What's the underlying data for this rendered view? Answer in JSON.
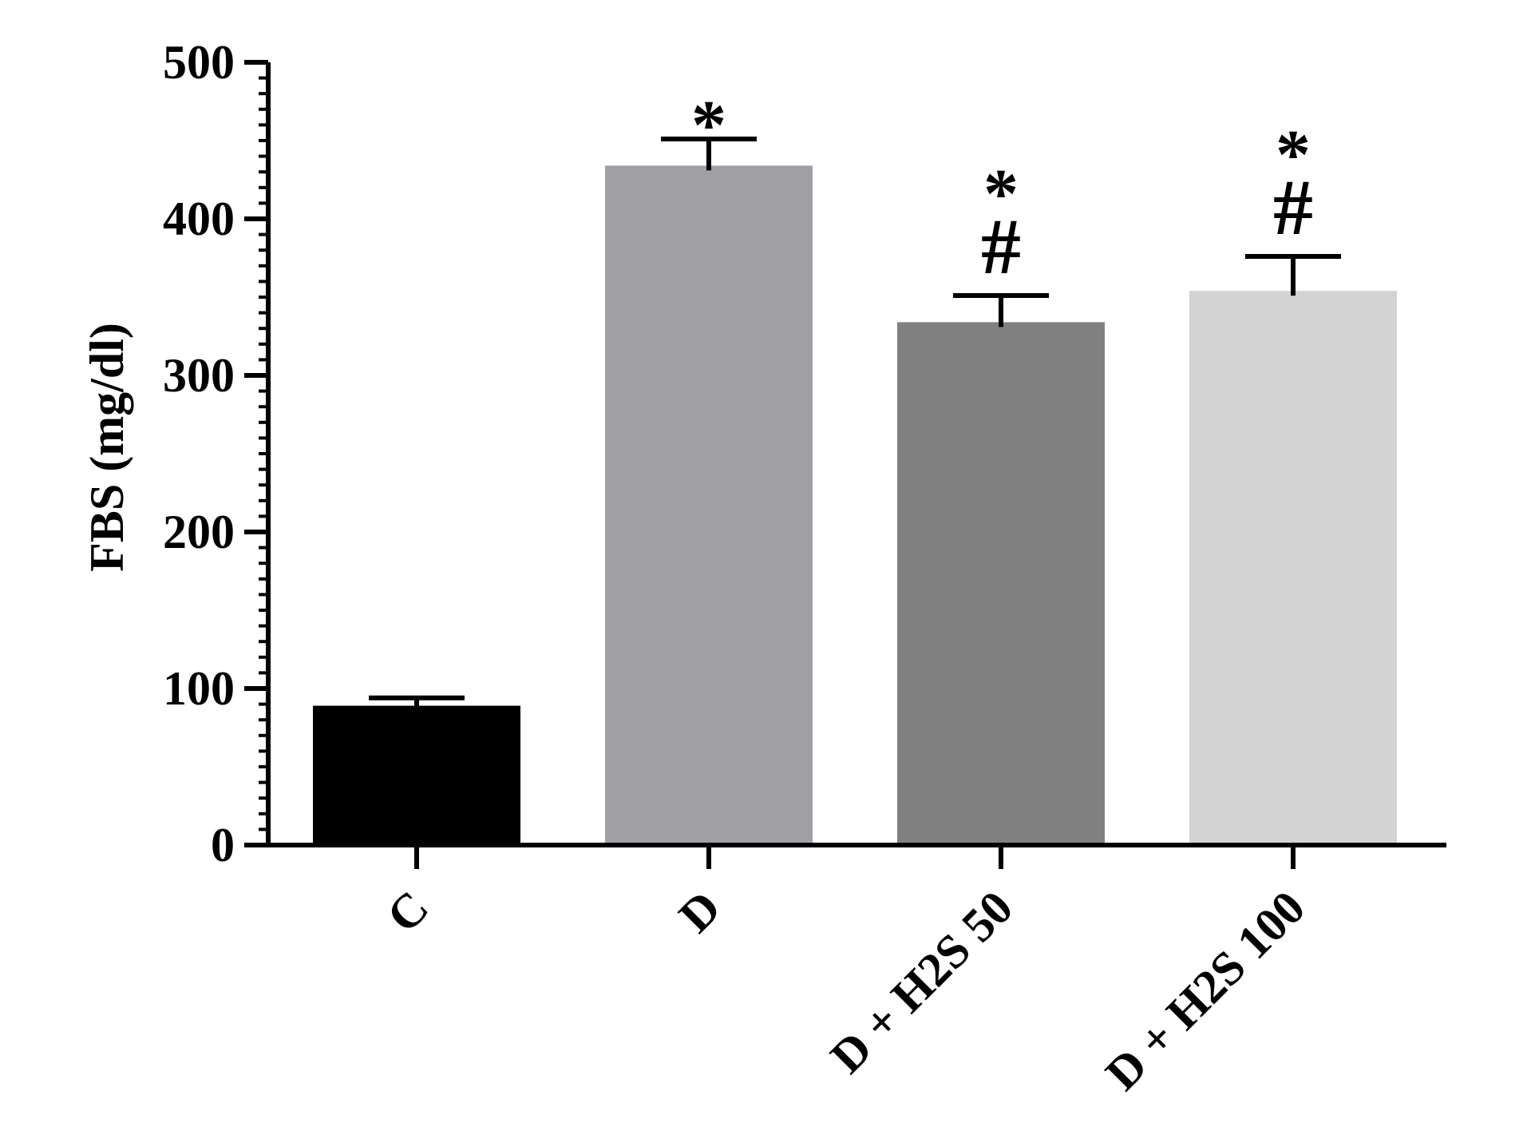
{
  "chart_data": {
    "type": "bar",
    "title": "",
    "xlabel": "",
    "ylabel": "FBS (mg/dl)",
    "ylim": [
      0,
      500
    ],
    "yticks": [
      "0",
      "100",
      "200",
      "300",
      "400",
      "500"
    ],
    "grid": false,
    "categories": [
      "C",
      "D",
      "D + H2S 50",
      "D + H2S 100"
    ],
    "values": [
      89,
      434,
      334,
      354
    ],
    "errors": [
      5,
      17,
      17,
      22
    ],
    "colors": [
      "#000000",
      "#a0a0a4",
      "#808080",
      "#d3d3d3"
    ],
    "annotations": [
      {
        "category": "D",
        "marks": [
          "*"
        ]
      },
      {
        "category": "D + H2S 50",
        "marks": [
          "#",
          "*"
        ]
      },
      {
        "category": "D + H2S 100",
        "marks": [
          "#",
          "*"
        ]
      }
    ]
  }
}
